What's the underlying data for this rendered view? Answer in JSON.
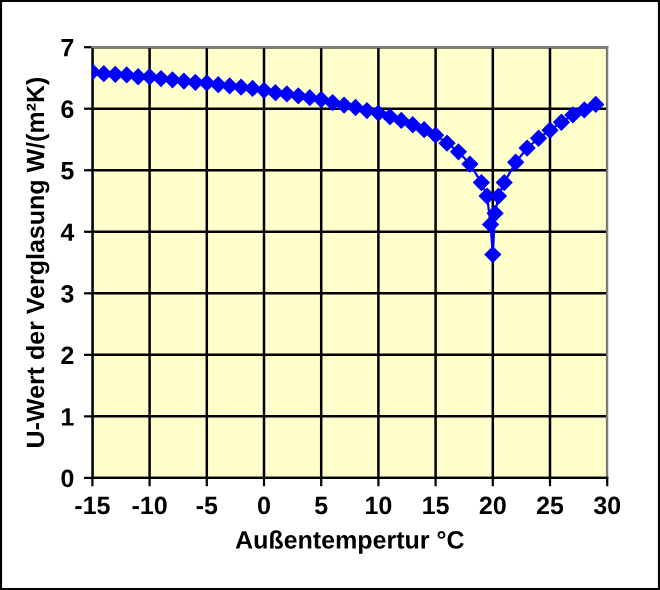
{
  "chart_data": {
    "type": "line",
    "xlabel": "Außentempertur °C",
    "ylabel": "U-Wert der Verglasung W/(m²K)",
    "x": [
      -15,
      -14,
      -13,
      -12,
      -11,
      -10,
      -9,
      -8,
      -7,
      -6,
      -5,
      -4,
      -3,
      -2,
      -1,
      0,
      1,
      2,
      3,
      4,
      5,
      6,
      7,
      8,
      9,
      10,
      11,
      12,
      13,
      14,
      15,
      16,
      17,
      18,
      19,
      19.5,
      19.8,
      20,
      20.2,
      20.5,
      21,
      22,
      23,
      24,
      25,
      26,
      27,
      28,
      29
    ],
    "series": [
      {
        "color": "#0000ff",
        "values": [
          6.6,
          6.57,
          6.56,
          6.55,
          6.52,
          6.52,
          6.49,
          6.47,
          6.45,
          6.43,
          6.42,
          6.39,
          6.37,
          6.35,
          6.33,
          6.3,
          6.26,
          6.24,
          6.21,
          6.18,
          6.15,
          6.1,
          6.06,
          6.02,
          5.97,
          5.93,
          5.87,
          5.81,
          5.74,
          5.66,
          5.57,
          5.44,
          5.3,
          5.1,
          4.8,
          4.58,
          4.12,
          3.63,
          4.3,
          4.58,
          4.8,
          5.13,
          5.36,
          5.52,
          5.65,
          5.78,
          5.9,
          5.98,
          6.07
        ]
      }
    ],
    "xlim": [
      -15,
      30
    ],
    "xticks": [
      -15,
      -10,
      -5,
      0,
      5,
      10,
      15,
      20,
      25,
      30
    ],
    "ylim": [
      0,
      7
    ],
    "yticks": [
      0,
      1,
      2,
      3,
      4,
      5,
      6,
      7
    ],
    "grid": true,
    "marker": "diamond",
    "line_style": "solid",
    "legend": false
  }
}
